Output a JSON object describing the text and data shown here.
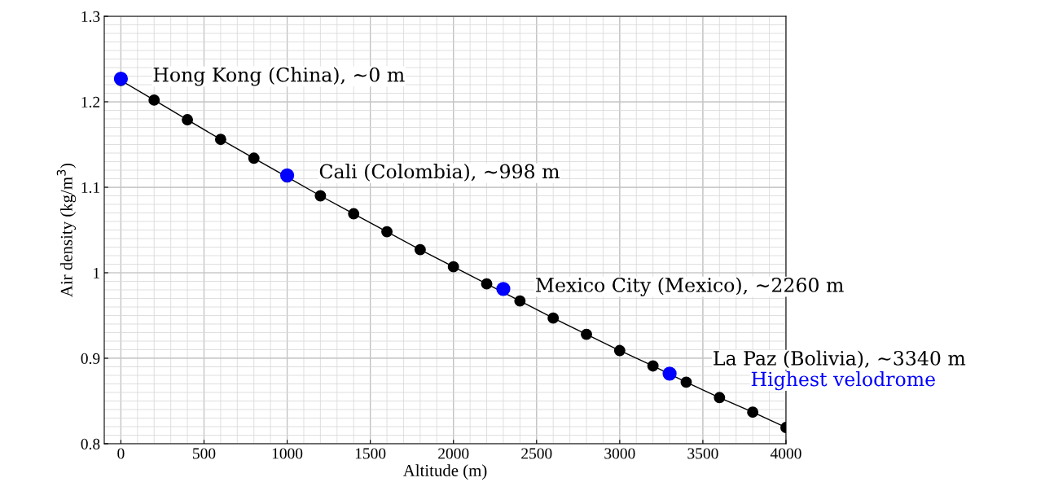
{
  "chart_data": {
    "type": "line",
    "xlabel": "Altitude (m)",
    "ylabel": "Air density (kg/m$^{3}$)",
    "xlim": [
      -100,
      4000
    ],
    "ylim": [
      0.8,
      1.3
    ],
    "xticks": [
      0,
      500,
      1000,
      1500,
      2000,
      2500,
      3000,
      3500,
      4000
    ],
    "yticks": [
      {
        "value": 0.8,
        "label": "0.8"
      },
      {
        "value": 0.9,
        "label": "0.9"
      },
      1,
      {
        "value": 1.1,
        "label": "1.1"
      },
      {
        "value": 1.2,
        "label": "1.2"
      },
      {
        "value": 1.3,
        "label": "1.3"
      }
    ],
    "grid": true,
    "marker": "circle",
    "line_style": "solid",
    "series": [
      {
        "color": "#000000",
        "x": [
          0,
          200,
          400,
          600,
          800,
          1000,
          1200,
          1400,
          1600,
          1800,
          2000,
          2200,
          2400,
          2600,
          2800,
          3000,
          3200,
          3400,
          3600,
          3800,
          4000
        ],
        "values": [
          1.225,
          1.202,
          1.179,
          1.156,
          1.134,
          1.112,
          1.09,
          1.069,
          1.048,
          1.027,
          1.007,
          0.987,
          0.967,
          0.947,
          0.928,
          0.909,
          0.891,
          0.872,
          0.854,
          0.837,
          0.819
        ]
      },
      {
        "type": "scatter",
        "color": "#0000ff",
        "x": [
          0,
          1000,
          2300,
          3300
        ],
        "values": [
          1.227,
          1.114,
          0.981,
          0.882
        ]
      }
    ],
    "annotations": [
      {
        "text": "Hong Kong (China), ~0 m",
        "x": 0,
        "y": 1.227
      },
      {
        "text": "Cali (Colombia), ~998 m",
        "x": 1000,
        "y": 1.114
      },
      {
        "text": "Mexico City (Mexico), ~2260 m",
        "x": 2300,
        "y": 0.981
      },
      {
        "text": "La Paz (Bolivia), ~3340 m",
        "x": 3300,
        "y": 0.882
      },
      "Highest velodrome"
    ]
  }
}
